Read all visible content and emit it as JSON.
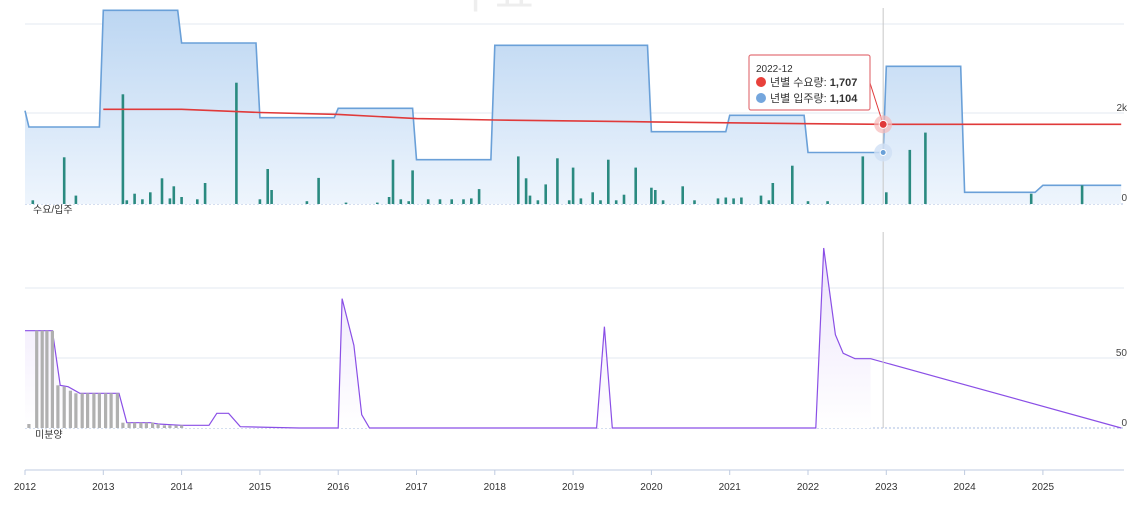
{
  "watermark": "수요",
  "x_axis": {
    "ticks": [
      "2012",
      "2013",
      "2014",
      "2015",
      "2016",
      "2017",
      "2018",
      "2019",
      "2020",
      "2021",
      "2022",
      "2023",
      "2024",
      "2025"
    ],
    "range": [
      2012.0,
      2026.0
    ]
  },
  "top_panel": {
    "label": "수요/입주",
    "y_ticks": [
      {
        "value": 0,
        "label": "0"
      },
      {
        "value": 2000,
        "label": "2k"
      }
    ],
    "ylim": [
      0,
      4200
    ]
  },
  "bottom_panel": {
    "label": "미분양",
    "y_ticks": [
      {
        "value": 0,
        "label": "0"
      },
      {
        "value": 50,
        "label": "50"
      }
    ],
    "ylim": [
      0,
      150
    ]
  },
  "cursor": {
    "x": 2022.96
  },
  "tooltip": {
    "title": "2022-12",
    "rows": [
      {
        "label": "년별 수요량: ",
        "value": "1,707",
        "color": "#e8413b"
      },
      {
        "label": "년별 입주량: ",
        "value": "1,104",
        "color": "#74a6dd"
      }
    ]
  },
  "colors": {
    "supply_line": "#6aa0d8",
    "supply_fill_top": "#bcd6f2",
    "supply_fill_bottom": "#eef5fd",
    "demand_line": "#e03a3a",
    "bars": "#2a8a80",
    "unsold_line": "#8a4fe6",
    "unsold_fill": "#ece3fb",
    "unsold_bars": "#b0b0b0",
    "grid": "#e3e9f2",
    "cursor": "#c8c8c8"
  },
  "chart_data": [
    {
      "type": "area",
      "panel": "top",
      "x_unit": "year",
      "series": [
        {
          "name": "년별 입주량",
          "step": true,
          "points": [
            [
              2012.0,
              2000
            ],
            [
              2012.05,
              1650
            ],
            [
              2012.95,
              1650
            ],
            [
              2013.0,
              4150
            ],
            [
              2013.95,
              4150
            ],
            [
              2014.0,
              3450
            ],
            [
              2014.95,
              3450
            ],
            [
              2015.0,
              1850
            ],
            [
              2015.95,
              1850
            ],
            [
              2016.0,
              2050
            ],
            [
              2016.95,
              2050
            ],
            [
              2017.0,
              950
            ],
            [
              2017.95,
              950
            ],
            [
              2018.0,
              3400
            ],
            [
              2018.95,
              3400
            ],
            [
              2019.95,
              3400
            ],
            [
              2020.0,
              1550
            ],
            [
              2020.95,
              1550
            ],
            [
              2021.0,
              1900
            ],
            [
              2021.95,
              1900
            ],
            [
              2022.0,
              1104
            ],
            [
              2022.96,
              1104
            ],
            [
              2023.0,
              2950
            ],
            [
              2023.95,
              2950
            ],
            [
              2024.0,
              250
            ],
            [
              2024.9,
              250
            ],
            [
              2025.0,
              400
            ],
            [
              2026.0,
              400
            ]
          ]
        },
        {
          "name": "년별 수요량",
          "points": [
            [
              2013.0,
              2030
            ],
            [
              2014.0,
              2030
            ],
            [
              2015.0,
              1960
            ],
            [
              2016.0,
              1920
            ],
            [
              2017.0,
              1830
            ],
            [
              2018.0,
              1800
            ],
            [
              2019.0,
              1780
            ],
            [
              2020.0,
              1760
            ],
            [
              2021.0,
              1740
            ],
            [
              2022.0,
              1720
            ],
            [
              2022.96,
              1707
            ],
            [
              2024.0,
              1707
            ],
            [
              2026.0,
              1707
            ]
          ]
        }
      ]
    },
    {
      "type": "bar",
      "panel": "top",
      "name": "월별 입주량",
      "x_unit": "year",
      "points": [
        [
          2012.1,
          80
        ],
        [
          2012.5,
          1000
        ],
        [
          2012.65,
          180
        ],
        [
          2013.25,
          2350
        ],
        [
          2013.3,
          80
        ],
        [
          2013.4,
          220
        ],
        [
          2013.5,
          100
        ],
        [
          2013.6,
          250
        ],
        [
          2013.75,
          550
        ],
        [
          2013.85,
          120
        ],
        [
          2013.9,
          380
        ],
        [
          2014.0,
          150
        ],
        [
          2014.2,
          100
        ],
        [
          2014.3,
          450
        ],
        [
          2014.7,
          2600
        ],
        [
          2015.0,
          100
        ],
        [
          2015.1,
          750
        ],
        [
          2015.15,
          300
        ],
        [
          2015.6,
          60
        ],
        [
          2015.75,
          560
        ],
        [
          2016.1,
          30
        ],
        [
          2016.5,
          30
        ],
        [
          2016.65,
          150
        ],
        [
          2016.7,
          950
        ],
        [
          2016.8,
          100
        ],
        [
          2016.9,
          60
        ],
        [
          2016.95,
          720
        ],
        [
          2017.15,
          100
        ],
        [
          2017.3,
          100
        ],
        [
          2017.45,
          100
        ],
        [
          2017.6,
          100
        ],
        [
          2017.7,
          120
        ],
        [
          2017.8,
          320
        ],
        [
          2018.3,
          1020
        ],
        [
          2018.4,
          550
        ],
        [
          2018.45,
          180
        ],
        [
          2018.55,
          80
        ],
        [
          2018.65,
          420
        ],
        [
          2018.8,
          980
        ],
        [
          2018.95,
          80
        ],
        [
          2019.0,
          780
        ],
        [
          2019.1,
          120
        ],
        [
          2019.25,
          250
        ],
        [
          2019.35,
          80
        ],
        [
          2019.45,
          950
        ],
        [
          2019.55,
          80
        ],
        [
          2019.65,
          200
        ],
        [
          2019.8,
          780
        ],
        [
          2020.0,
          350
        ],
        [
          2020.05,
          300
        ],
        [
          2020.15,
          80
        ],
        [
          2020.4,
          380
        ],
        [
          2020.55,
          80
        ],
        [
          2020.85,
          120
        ],
        [
          2020.95,
          140
        ],
        [
          2021.05,
          120
        ],
        [
          2021.15,
          140
        ],
        [
          2021.4,
          180
        ],
        [
          2021.5,
          80
        ],
        [
          2021.55,
          450
        ],
        [
          2021.8,
          820
        ],
        [
          2022.0,
          60
        ],
        [
          2022.25,
          60
        ],
        [
          2022.7,
          1020
        ],
        [
          2023.0,
          250
        ],
        [
          2023.3,
          1160
        ],
        [
          2023.5,
          1530
        ],
        [
          2024.85,
          220
        ],
        [
          2025.5,
          400
        ]
      ]
    },
    {
      "type": "area",
      "panel": "bottom",
      "x_unit": "year",
      "series": [
        {
          "name": "미분양",
          "points": [
            [
              2012.0,
              73
            ],
            [
              2012.35,
              73
            ],
            [
              2012.45,
              32
            ],
            [
              2012.55,
              31
            ],
            [
              2012.7,
              26
            ],
            [
              2013.2,
              26
            ],
            [
              2013.3,
              4
            ],
            [
              2013.6,
              4
            ],
            [
              2013.7,
              3
            ],
            [
              2014.0,
              2
            ],
            [
              2014.35,
              2
            ],
            [
              2014.45,
              11
            ],
            [
              2014.6,
              11
            ],
            [
              2014.75,
              1
            ],
            [
              2015.5,
              0
            ],
            [
              2016.0,
              0
            ],
            [
              2016.05,
              97
            ],
            [
              2016.2,
              62
            ],
            [
              2016.3,
              10
            ],
            [
              2016.4,
              0
            ],
            [
              2019.3,
              0
            ],
            [
              2019.4,
              76
            ],
            [
              2019.5,
              0
            ],
            [
              2022.1,
              0
            ],
            [
              2022.2,
              135
            ],
            [
              2022.35,
              70
            ],
            [
              2022.45,
              56
            ],
            [
              2022.6,
              52
            ],
            [
              2022.8,
              52
            ]
          ]
        }
      ]
    },
    {
      "type": "bar",
      "panel": "bottom",
      "name": "미분양 (월별)",
      "x_unit": "year",
      "points": [
        [
          2012.05,
          3
        ],
        [
          2012.15,
          73
        ],
        [
          2012.22,
          73
        ],
        [
          2012.28,
          73
        ],
        [
          2012.35,
          73
        ],
        [
          2012.42,
          32
        ],
        [
          2012.5,
          31
        ],
        [
          2012.58,
          28
        ],
        [
          2012.65,
          26
        ],
        [
          2012.73,
          26
        ],
        [
          2012.8,
          26
        ],
        [
          2012.88,
          26
        ],
        [
          2012.95,
          26
        ],
        [
          2013.03,
          26
        ],
        [
          2013.1,
          26
        ],
        [
          2013.18,
          26
        ],
        [
          2013.25,
          4
        ],
        [
          2013.33,
          4
        ],
        [
          2013.4,
          4
        ],
        [
          2013.48,
          4
        ],
        [
          2013.55,
          4
        ],
        [
          2013.63,
          4
        ],
        [
          2013.7,
          3
        ],
        [
          2013.78,
          2
        ],
        [
          2013.85,
          2
        ],
        [
          2013.93,
          2
        ],
        [
          2014.0,
          2
        ]
      ]
    }
  ]
}
